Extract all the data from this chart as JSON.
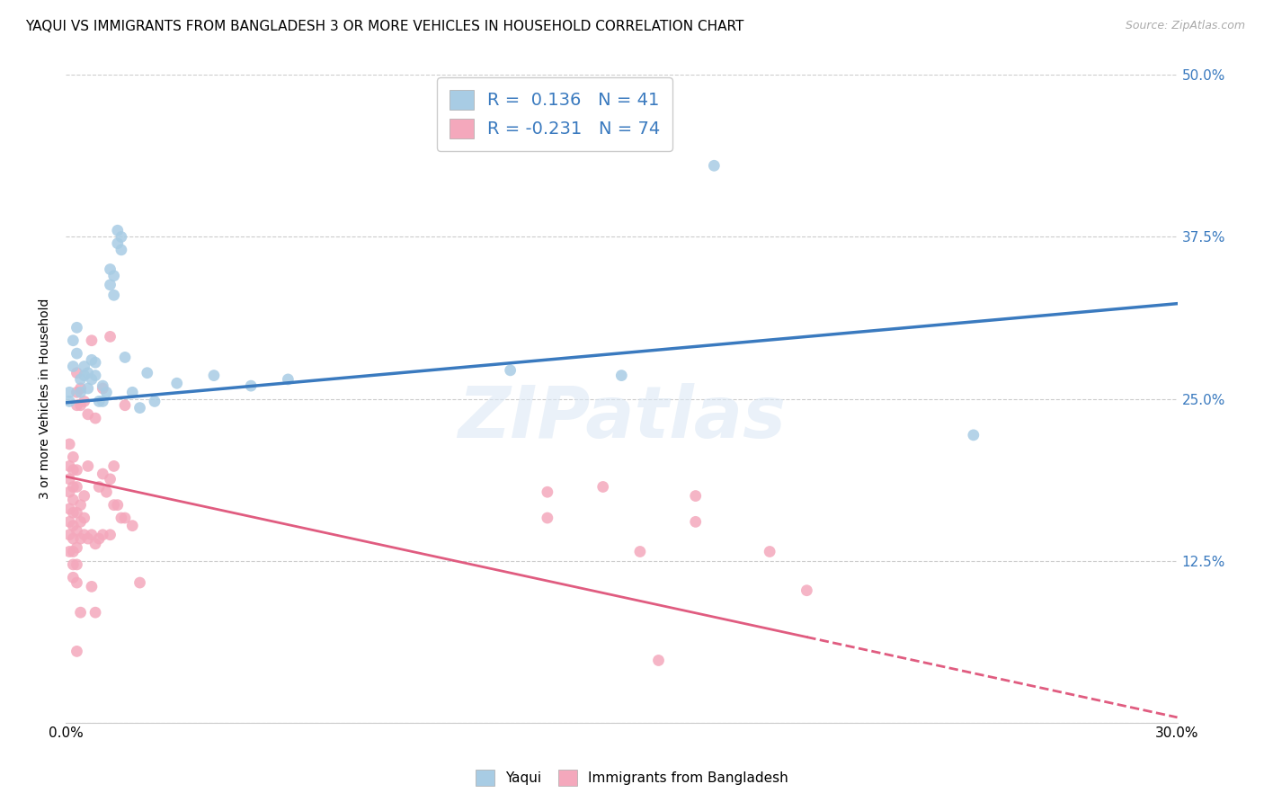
{
  "title": "YAQUI VS IMMIGRANTS FROM BANGLADESH 3 OR MORE VEHICLES IN HOUSEHOLD CORRELATION CHART",
  "source": "Source: ZipAtlas.com",
  "ylabel": "3 or more Vehicles in Household",
  "xlim": [
    0.0,
    0.3
  ],
  "ylim": [
    0.0,
    0.5
  ],
  "xticks": [
    0.0,
    0.05,
    0.1,
    0.15,
    0.2,
    0.25,
    0.3
  ],
  "xticklabels": [
    "0.0%",
    "",
    "",
    "",
    "",
    "",
    "30.0%"
  ],
  "yticks_right": [
    0.0,
    0.125,
    0.25,
    0.375,
    0.5
  ],
  "ytick_right_labels": [
    "",
    "12.5%",
    "25.0%",
    "37.5%",
    "50.0%"
  ],
  "legend_R_yaqui": "0.136",
  "legend_N_yaqui": "41",
  "legend_R_bangla": "-0.231",
  "legend_N_bangla": "74",
  "yaqui_color": "#a8cce4",
  "bangla_color": "#f4a8bc",
  "yaqui_line_color": "#3a7abf",
  "bangla_line_color": "#e05c80",
  "watermark": "ZIPatlas",
  "yaqui_scatter": [
    [
      0.001,
      0.255
    ],
    [
      0.001,
      0.248
    ],
    [
      0.002,
      0.295
    ],
    [
      0.002,
      0.275
    ],
    [
      0.003,
      0.305
    ],
    [
      0.003,
      0.285
    ],
    [
      0.004,
      0.255
    ],
    [
      0.004,
      0.265
    ],
    [
      0.005,
      0.275
    ],
    [
      0.005,
      0.268
    ],
    [
      0.006,
      0.258
    ],
    [
      0.006,
      0.27
    ],
    [
      0.007,
      0.28
    ],
    [
      0.007,
      0.265
    ],
    [
      0.008,
      0.278
    ],
    [
      0.008,
      0.268
    ],
    [
      0.009,
      0.248
    ],
    [
      0.01,
      0.26
    ],
    [
      0.01,
      0.248
    ],
    [
      0.011,
      0.255
    ],
    [
      0.012,
      0.35
    ],
    [
      0.012,
      0.338
    ],
    [
      0.013,
      0.345
    ],
    [
      0.013,
      0.33
    ],
    [
      0.014,
      0.38
    ],
    [
      0.014,
      0.37
    ],
    [
      0.015,
      0.375
    ],
    [
      0.015,
      0.365
    ],
    [
      0.016,
      0.282
    ],
    [
      0.018,
      0.255
    ],
    [
      0.02,
      0.243
    ],
    [
      0.022,
      0.27
    ],
    [
      0.024,
      0.248
    ],
    [
      0.03,
      0.262
    ],
    [
      0.04,
      0.268
    ],
    [
      0.05,
      0.26
    ],
    [
      0.06,
      0.265
    ],
    [
      0.12,
      0.272
    ],
    [
      0.15,
      0.268
    ],
    [
      0.175,
      0.43
    ],
    [
      0.245,
      0.222
    ]
  ],
  "bangla_scatter": [
    [
      0.001,
      0.215
    ],
    [
      0.001,
      0.198
    ],
    [
      0.001,
      0.188
    ],
    [
      0.001,
      0.178
    ],
    [
      0.001,
      0.165
    ],
    [
      0.001,
      0.155
    ],
    [
      0.001,
      0.145
    ],
    [
      0.001,
      0.132
    ],
    [
      0.002,
      0.205
    ],
    [
      0.002,
      0.195
    ],
    [
      0.002,
      0.182
    ],
    [
      0.002,
      0.172
    ],
    [
      0.002,
      0.162
    ],
    [
      0.002,
      0.152
    ],
    [
      0.002,
      0.142
    ],
    [
      0.002,
      0.132
    ],
    [
      0.002,
      0.122
    ],
    [
      0.002,
      0.112
    ],
    [
      0.003,
      0.27
    ],
    [
      0.003,
      0.255
    ],
    [
      0.003,
      0.245
    ],
    [
      0.003,
      0.195
    ],
    [
      0.003,
      0.182
    ],
    [
      0.003,
      0.162
    ],
    [
      0.003,
      0.148
    ],
    [
      0.003,
      0.135
    ],
    [
      0.003,
      0.122
    ],
    [
      0.003,
      0.108
    ],
    [
      0.003,
      0.055
    ],
    [
      0.004,
      0.258
    ],
    [
      0.004,
      0.245
    ],
    [
      0.004,
      0.168
    ],
    [
      0.004,
      0.155
    ],
    [
      0.004,
      0.142
    ],
    [
      0.004,
      0.085
    ],
    [
      0.005,
      0.248
    ],
    [
      0.005,
      0.175
    ],
    [
      0.005,
      0.158
    ],
    [
      0.005,
      0.145
    ],
    [
      0.006,
      0.238
    ],
    [
      0.006,
      0.198
    ],
    [
      0.006,
      0.142
    ],
    [
      0.007,
      0.295
    ],
    [
      0.007,
      0.145
    ],
    [
      0.007,
      0.105
    ],
    [
      0.008,
      0.235
    ],
    [
      0.008,
      0.138
    ],
    [
      0.008,
      0.085
    ],
    [
      0.009,
      0.182
    ],
    [
      0.009,
      0.142
    ],
    [
      0.01,
      0.258
    ],
    [
      0.01,
      0.192
    ],
    [
      0.01,
      0.145
    ],
    [
      0.011,
      0.178
    ],
    [
      0.012,
      0.298
    ],
    [
      0.012,
      0.188
    ],
    [
      0.012,
      0.145
    ],
    [
      0.013,
      0.198
    ],
    [
      0.013,
      0.168
    ],
    [
      0.014,
      0.168
    ],
    [
      0.015,
      0.158
    ],
    [
      0.016,
      0.245
    ],
    [
      0.016,
      0.158
    ],
    [
      0.018,
      0.152
    ],
    [
      0.02,
      0.108
    ],
    [
      0.13,
      0.178
    ],
    [
      0.13,
      0.158
    ],
    [
      0.145,
      0.182
    ],
    [
      0.155,
      0.132
    ],
    [
      0.16,
      0.048
    ],
    [
      0.17,
      0.175
    ],
    [
      0.17,
      0.155
    ],
    [
      0.19,
      0.132
    ],
    [
      0.2,
      0.102
    ]
  ],
  "background_color": "#ffffff",
  "grid_color": "#cccccc",
  "title_fontsize": 11,
  "axis_label_fontsize": 10,
  "tick_fontsize": 11,
  "yaqui_line_intercept": 0.247,
  "yaqui_line_slope": 0.255,
  "bangla_line_intercept": 0.19,
  "bangla_line_slope": -0.62
}
